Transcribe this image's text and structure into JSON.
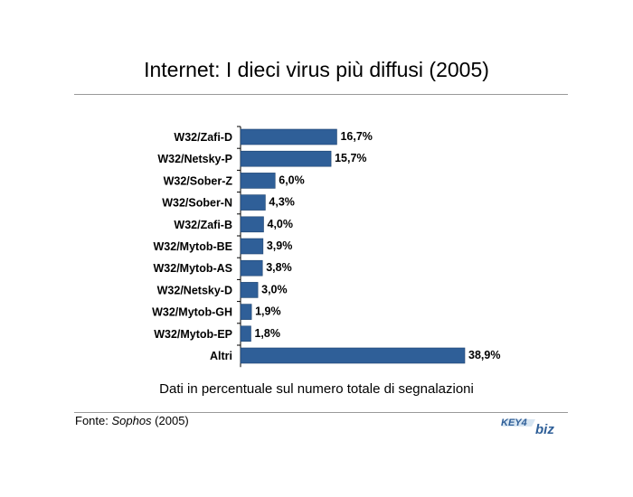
{
  "title": "Internet: I dieci virus più diffusi (2005)",
  "caption": "Dati in percentuale sul numero totale di segnalazioni",
  "source": {
    "prefix": "Fonte: ",
    "name": "Sophos",
    "suffix": " (2005)"
  },
  "logo": {
    "text_left": "KEY4",
    "text_right": "biz"
  },
  "colors": {
    "bar": "#2f5f98",
    "bar_stroke": "#1f4470",
    "rule": "#9a9a9a"
  },
  "chart_data": {
    "type": "bar",
    "orientation": "horizontal",
    "categories": [
      "W32/Zafi-D",
      "W32/Netsky-P",
      "W32/Sober-Z",
      "W32/Sober-N",
      "W32/Zafi-B",
      "W32/Mytob-BE",
      "W32/Mytob-AS",
      "W32/Netsky-D",
      "W32/Mytob-GH",
      "W32/Mytob-EP",
      "Altri"
    ],
    "values": [
      16.7,
      15.7,
      6.0,
      4.3,
      4.0,
      3.9,
      3.8,
      3.0,
      1.9,
      1.8,
      38.9
    ],
    "value_labels": [
      "16,7%",
      "15,7%",
      "6,0%",
      "4,3%",
      "4,0%",
      "3,9%",
      "3,8%",
      "3,0%",
      "1,9%",
      "1,8%",
      "38,9%"
    ],
    "xlim": [
      0,
      38.9
    ],
    "grid": false,
    "legend": "none"
  }
}
